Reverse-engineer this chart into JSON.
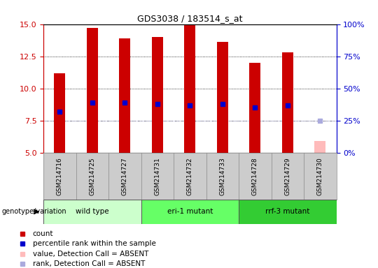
{
  "title": "GDS3038 / 183514_s_at",
  "samples": [
    "GSM214716",
    "GSM214725",
    "GSM214727",
    "GSM214731",
    "GSM214732",
    "GSM214733",
    "GSM214728",
    "GSM214729",
    "GSM214730"
  ],
  "count_values": [
    11.2,
    14.7,
    13.9,
    14.0,
    15.0,
    13.6,
    12.0,
    12.8,
    null
  ],
  "rank_values": [
    8.2,
    8.9,
    8.9,
    8.8,
    8.7,
    8.8,
    8.5,
    8.7,
    null
  ],
  "absent_value": 5.9,
  "absent_rank": 7.5,
  "ylim": [
    5,
    15
  ],
  "yticks": [
    5,
    7.5,
    10,
    12.5,
    15
  ],
  "groups": [
    {
      "label": "wild type",
      "start": 0,
      "end": 2,
      "color": "#ccffcc"
    },
    {
      "label": "eri-1 mutant",
      "start": 3,
      "end": 5,
      "color": "#66ff66"
    },
    {
      "label": "rrf-3 mutant",
      "start": 6,
      "end": 8,
      "color": "#33cc33"
    }
  ],
  "bar_color": "#cc0000",
  "absent_bar_color": "#ffbbbb",
  "rank_color": "#0000cc",
  "absent_rank_color": "#aaaadd",
  "left_axis_color": "#cc0000",
  "right_axis_color": "#0000cc",
  "bar_width": 0.35,
  "sample_box_color": "#cccccc",
  "legend_items": [
    {
      "color": "#cc0000",
      "label": "count"
    },
    {
      "color": "#0000cc",
      "label": "percentile rank within the sample"
    },
    {
      "color": "#ffbbbb",
      "label": "value, Detection Call = ABSENT"
    },
    {
      "color": "#aaaadd",
      "label": "rank, Detection Call = ABSENT"
    }
  ]
}
